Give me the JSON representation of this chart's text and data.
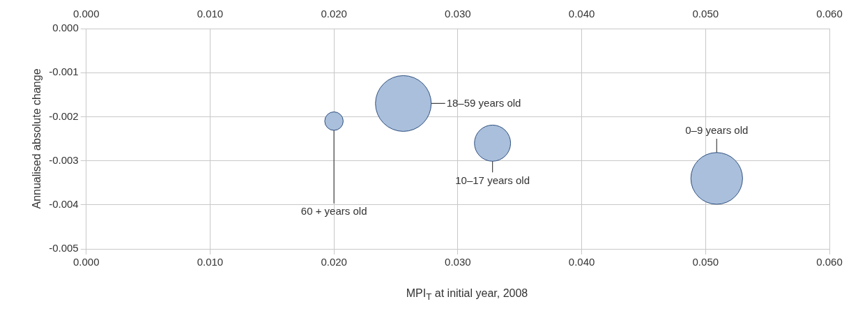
{
  "chart_data": {
    "type": "bubble",
    "xlabel": "MPI$_{T}$ at initial year, 2008",
    "ylabel": "Annualised absolute change",
    "x": [
      0.02,
      0.0256,
      0.0328,
      0.0509
    ],
    "series": [
      {
        "color": "#a9bfdb",
        "values": [
          -0.0021,
          -0.0017,
          -0.0026,
          -0.0034
        ],
        "sizes": [
          0.11,
          1,
          0.42,
          0.86
        ]
      }
    ],
    "annotations": [
      {
        "text": "60 + years old",
        "x": 0.02,
        "y": -0.0021
      },
      {
        "text": "18–59 years old",
        "x": 0.0256,
        "y": -0.0017
      },
      {
        "text": "10–17 years old",
        "x": 0.0328,
        "y": -0.0026
      },
      {
        "text": "0–9 years old",
        "x": 0.0509,
        "y": -0.0034
      }
    ],
    "xlim": [
      0,
      0.06
    ],
    "xticks": [
      {
        "value": 0,
        "label": "0.000"
      },
      {
        "value": 0.01,
        "label": "0.010"
      },
      {
        "value": 0.02,
        "label": "0.020"
      },
      {
        "value": 0.03,
        "label": "0.030"
      },
      {
        "value": 0.04,
        "label": "0.040"
      },
      {
        "value": 0.05,
        "label": "0.050"
      },
      {
        "value": 0.06,
        "label": "0.060"
      }
    ],
    "x2lim": [
      0,
      0.06
    ],
    "x2ticks": [
      {
        "value": 0,
        "label": "0.000"
      },
      {
        "value": 0.01,
        "label": "0.010"
      },
      {
        "value": 0.02,
        "label": "0.020"
      },
      {
        "value": 0.03,
        "label": "0.030"
      },
      {
        "value": 0.04,
        "label": "0.040"
      },
      {
        "value": 0.05,
        "label": "0.050"
      },
      {
        "value": 0.06,
        "label": "0.060"
      }
    ],
    "ylim": [
      -0.005,
      0
    ],
    "yticks": [
      {
        "value": -0.005,
        "label": "-0.005"
      },
      {
        "value": -0.004,
        "label": "-0.004"
      },
      {
        "value": -0.003,
        "label": "-0.003"
      },
      {
        "value": -0.002,
        "label": "-0.002"
      },
      {
        "value": -0.001,
        "label": "-0.001"
      },
      {
        "value": 0,
        "label": "0.000"
      }
    ],
    "grid": true,
    "legend": false
  }
}
